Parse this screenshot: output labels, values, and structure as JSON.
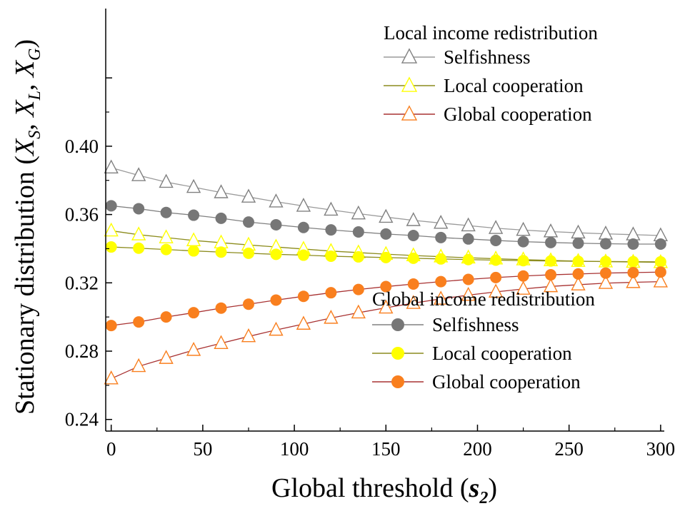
{
  "chart_data": {
    "type": "line",
    "xlabel": {
      "main": "Global threshold (",
      "var": "s",
      "sub": "2",
      "close": ")"
    },
    "ylabel": {
      "main": "Stationary distribution (",
      "v1": "X",
      "s1": "S",
      "v2": "X",
      "s2": "L",
      "v3": "X",
      "s3": "G",
      "close": ")",
      "sep": ", "
    },
    "xlim": [
      -3,
      302
    ],
    "ylim": [
      0.2332,
      0.4806
    ],
    "x_ticks": [
      0,
      50,
      100,
      150,
      200,
      250,
      300
    ],
    "x_tick_labels": [
      "0",
      "50",
      "100",
      "150",
      "200",
      "250",
      "300"
    ],
    "y_ticks": [
      0.24,
      0.28,
      0.32,
      0.36,
      0.4
    ],
    "y_tick_labels": [
      "0.24",
      "0.28",
      "0.32",
      "0.36",
      "0.40"
    ],
    "grid": false,
    "x": [
      0,
      15,
      30,
      45,
      60,
      75,
      90,
      105,
      120,
      135,
      150,
      165,
      180,
      195,
      210,
      225,
      240,
      255,
      270,
      285,
      300
    ],
    "legend_groups": [
      {
        "title": "Local income redistribution",
        "placement": "top-right",
        "marker": "open-triangle"
      },
      {
        "title": "Global income redistribution",
        "placement": "bottom-right",
        "marker": "filled-circle"
      }
    ],
    "series": [
      {
        "name": "Selfishness",
        "group": 0,
        "color": "#808080",
        "line_color": "#9a9a9a",
        "values": [
          0.3874,
          0.3829,
          0.379,
          0.376,
          0.3729,
          0.3703,
          0.3675,
          0.365,
          0.3627,
          0.3605,
          0.3585,
          0.3566,
          0.355,
          0.3535,
          0.352,
          0.3509,
          0.35,
          0.3493,
          0.3487,
          0.3482,
          0.3477
        ]
      },
      {
        "name": "Local cooperation",
        "group": 0,
        "color": "#ffff00",
        "line_color": "#8c8c1e",
        "values": [
          0.3505,
          0.3482,
          0.3465,
          0.3448,
          0.3435,
          0.3422,
          0.341,
          0.3398,
          0.3386,
          0.3377,
          0.3368,
          0.336,
          0.3353,
          0.3347,
          0.3341,
          0.3336,
          0.3331,
          0.3327,
          0.3324,
          0.3322,
          0.332
        ]
      },
      {
        "name": "Global cooperation",
        "group": 0,
        "color": "#f97f1e",
        "line_color": "#a83232",
        "values": [
          0.2639,
          0.2711,
          0.2759,
          0.2806,
          0.2846,
          0.2886,
          0.2924,
          0.2959,
          0.2994,
          0.3025,
          0.3054,
          0.3081,
          0.3106,
          0.3128,
          0.3147,
          0.3164,
          0.3179,
          0.3189,
          0.3198,
          0.3203,
          0.3207
        ]
      },
      {
        "name": "Selfishness",
        "group": 1,
        "color": "#777777",
        "line_color": "#808080",
        "values": [
          0.3651,
          0.3634,
          0.3612,
          0.3596,
          0.3578,
          0.3556,
          0.354,
          0.3524,
          0.351,
          0.3498,
          0.3486,
          0.3477,
          0.3465,
          0.3457,
          0.3448,
          0.3441,
          0.3436,
          0.3432,
          0.3429,
          0.3427,
          0.3427
        ]
      },
      {
        "name": "Local cooperation",
        "group": 1,
        "color": "#ffff00",
        "line_color": "#8c8c1e",
        "values": [
          0.341,
          0.3403,
          0.3395,
          0.3387,
          0.338,
          0.3373,
          0.3367,
          0.3362,
          0.3356,
          0.3352,
          0.3348,
          0.3344,
          0.334,
          0.3336,
          0.3333,
          0.333,
          0.3328,
          0.3326,
          0.3325,
          0.3324,
          0.3323
        ]
      },
      {
        "name": "Global cooperation",
        "group": 1,
        "color": "#f97f1e",
        "line_color": "#a83232",
        "values": [
          0.295,
          0.2971,
          0.3,
          0.3025,
          0.3052,
          0.3075,
          0.3099,
          0.3121,
          0.3142,
          0.3161,
          0.3178,
          0.3193,
          0.3207,
          0.322,
          0.3231,
          0.324,
          0.3247,
          0.3252,
          0.3257,
          0.326,
          0.3263
        ]
      }
    ]
  }
}
